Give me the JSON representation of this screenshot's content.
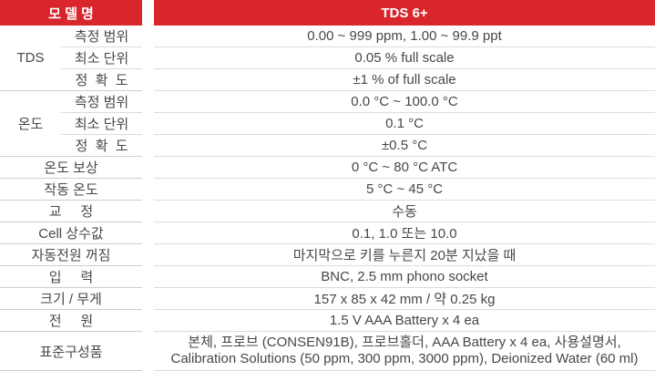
{
  "colors": {
    "accent_red": "#d8262c",
    "divider_light": "#dcdcdc",
    "divider_dark": "#cccccc",
    "text": "#474747",
    "header_text": "#ffffff"
  },
  "table": {
    "header": {
      "model_label": "모 델 명",
      "model_value": "TDS 6+"
    },
    "groups": [
      {
        "name": "TDS",
        "rows": [
          {
            "label": "측정 범위",
            "value": "0.00 ~ 999 ppm, 1.00 ~ 99.9 ppt"
          },
          {
            "label": "최소 단위",
            "value": "0.05 % full scale"
          },
          {
            "label": "정  확  도",
            "value": "±1 % of full scale"
          }
        ]
      },
      {
        "name": "온도",
        "rows": [
          {
            "label": "측정 범위",
            "value": "0.0 °C ~ 100.0 °C"
          },
          {
            "label": "최소 단위",
            "value": "0.1 °C"
          },
          {
            "label": "정  확  도",
            "value": "±0.5 °C"
          }
        ]
      }
    ],
    "rows": [
      {
        "label": "온도 보상",
        "value": "0 °C ~ 80 °C ATC"
      },
      {
        "label": "작동 온도",
        "value": "5 °C ~ 45 °C"
      },
      {
        "label": "교     정",
        "value": "수동"
      },
      {
        "label": "Cell 상수값",
        "value": "0.1, 1.0 또는 10.0"
      },
      {
        "label": "자동전원 꺼짐",
        "value": "마지막으로 키를 누른지 20분 지났을 때"
      },
      {
        "label": "입     력",
        "value": "BNC, 2.5 mm phono socket"
      },
      {
        "label": "크기 / 무게",
        "value": "157 x 85 x 42 mm / 약 0.25 kg"
      },
      {
        "label": "전     원",
        "value": "1.5 V AAA Battery x 4 ea"
      },
      {
        "label": "표준구성품",
        "value_line1": "본체, 프로브 (CONSEN91B), 프로브홀더, AAA Battery x 4 ea, 사용설명서,",
        "value_line2": "Calibration Solutions (50 ppm, 300 ppm, 3000 ppm), Deionized Water (60 ml)"
      }
    ]
  }
}
